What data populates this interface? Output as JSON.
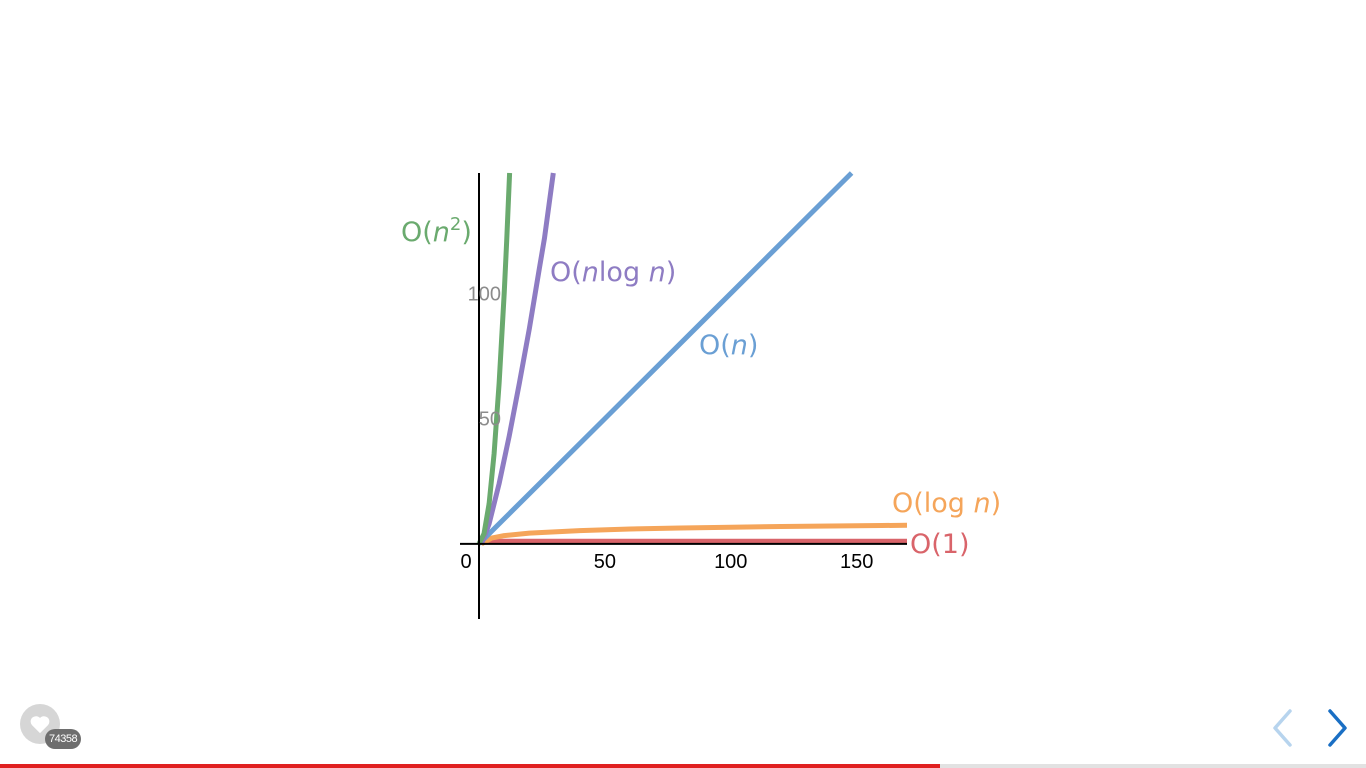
{
  "chart_data": {
    "type": "line",
    "title": "",
    "xlabel": "",
    "ylabel": "",
    "xlim": [
      0,
      170
    ],
    "ylim": [
      -30,
      148
    ],
    "x_ticks": [
      0,
      50,
      100,
      150
    ],
    "x_tick_labels": [
      "0",
      "50",
      "100",
      "150"
    ],
    "y_ticks": [
      50,
      100
    ],
    "y_tick_labels": [
      "50",
      "100"
    ],
    "grid": false,
    "legend": "none",
    "series": [
      {
        "name": "O(1)",
        "label_parts": [
          "O(1)"
        ],
        "color": "#d9646a",
        "x": [
          0,
          20,
          40,
          60,
          80,
          100,
          120,
          140,
          160,
          170
        ],
        "y": [
          1,
          1,
          1,
          1,
          1,
          1,
          1,
          1,
          1,
          1
        ]
      },
      {
        "name": "O(log n)",
        "label_parts": [
          "O(log ",
          "n",
          ")"
        ],
        "color": "#f5a55a",
        "x": [
          1,
          5,
          10,
          20,
          40,
          60,
          80,
          100,
          120,
          140,
          160,
          170
        ],
        "y": [
          0,
          2.3,
          3.3,
          4.3,
          5.3,
          5.9,
          6.3,
          6.6,
          6.9,
          7.1,
          7.3,
          7.4
        ]
      },
      {
        "name": "O(n)",
        "label_parts": [
          "O(",
          "n",
          ")"
        ],
        "color": "#6a9fd4",
        "x": [
          0,
          50,
          100,
          148
        ],
        "y": [
          0,
          50,
          100,
          148
        ]
      },
      {
        "name": "O(nlog n)",
        "label_parts": [
          "O(",
          "n",
          "log ",
          "n",
          ")"
        ],
        "color": "#8e7cc3",
        "x": [
          1,
          4,
          8,
          12,
          16,
          20,
          24,
          26,
          29.5
        ],
        "y": [
          0,
          8,
          24,
          43,
          64,
          86,
          110,
          122,
          148
        ]
      },
      {
        "name": "O(n²)",
        "label_parts": [
          "O(",
          "n",
          "2",
          ")"
        ],
        "color": "#6aaa6e",
        "x": [
          0,
          2,
          4,
          6,
          8,
          10,
          11,
          12.17
        ],
        "y": [
          0,
          4,
          16,
          36,
          64,
          100,
          121,
          148
        ]
      }
    ]
  },
  "ui": {
    "like_count": "74358",
    "accent_color": "#e02020",
    "progress_fraction": 0.688,
    "prev_color": "#b7d4ee",
    "next_color": "#1a6fc4"
  }
}
